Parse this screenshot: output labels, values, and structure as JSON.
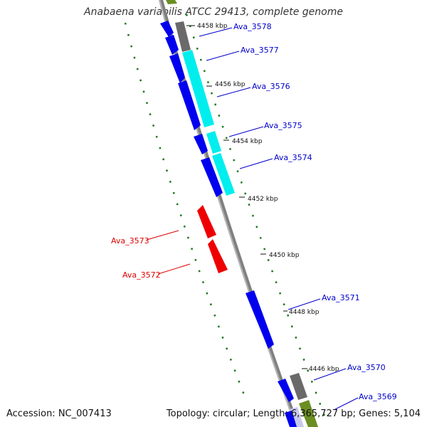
{
  "title": "Anabaena variabilis ATCC 29413, complete genome",
  "footer": {
    "accession": "Accession: NC_007413",
    "summary": "Topology: circular; Length: 6,365,727 bp; Genes: 5,104"
  },
  "colors": {
    "forward_cds": "#0000ee",
    "reverse_cds": "#ee0000",
    "other_feature": "#00eeee",
    "gray_feature": "#666666",
    "olive_feature": "#6b8e23",
    "backbone": "#808080",
    "gc_dots": "#1a7a1a",
    "forward_label": "#0000cc",
    "reverse_label": "#dd0000"
  },
  "ticks": [
    "4458 kbp",
    "4456 kbp",
    "4454 kbp",
    "4452 kbp",
    "4450 kbp",
    "4448 kbp",
    "4446 kbp"
  ],
  "genes": [
    {
      "name": "Ava_3578",
      "strand": "forward"
    },
    {
      "name": "Ava_3577",
      "strand": "forward"
    },
    {
      "name": "Ava_3576",
      "strand": "forward"
    },
    {
      "name": "Ava_3575",
      "strand": "forward"
    },
    {
      "name": "Ava_3574",
      "strand": "forward"
    },
    {
      "name": "Ava_3573",
      "strand": "reverse"
    },
    {
      "name": "Ava_3572",
      "strand": "reverse"
    },
    {
      "name": "Ava_3571",
      "strand": "forward"
    },
    {
      "name": "Ava_3570",
      "strand": "forward"
    },
    {
      "name": "Ava_3569",
      "strand": "forward"
    }
  ]
}
